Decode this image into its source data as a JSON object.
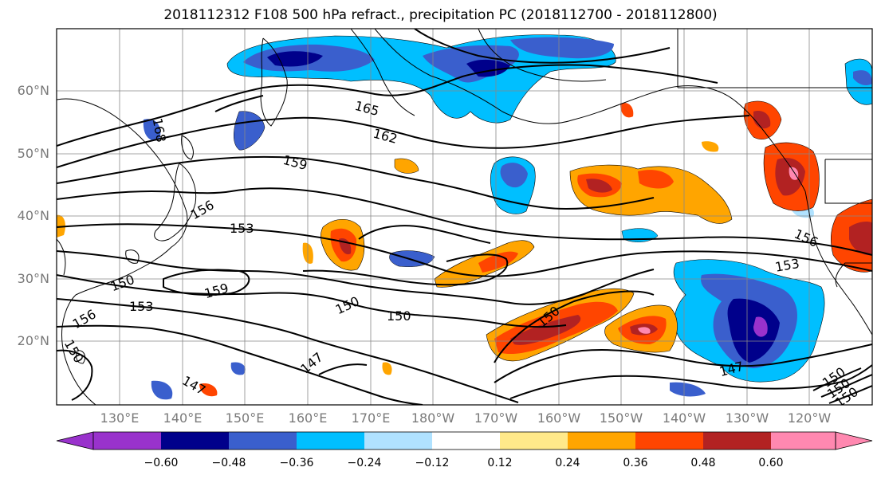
{
  "title": "2018112312 F108 500 hPa refract., precipitation PC (2018112700 - 2018112800)",
  "lat_labels": [
    "60°N",
    "50°N",
    "40°N",
    "30°N",
    "20°N"
  ],
  "lon_labels": [
    "130°E",
    "140°E",
    "150°E",
    "160°E",
    "170°E",
    "180°W",
    "170°W",
    "160°W",
    "150°W",
    "140°W",
    "130°W",
    "120°W"
  ],
  "colorbar": {
    "ticks": [
      "−0.60",
      "−0.48",
      "−0.36",
      "−0.24",
      "−0.12",
      "0.12",
      "0.24",
      "0.36",
      "0.48",
      "0.60"
    ],
    "colors": [
      "#9932cc",
      "#00008b",
      "#3a5fcd",
      "#00bfff",
      "#b0e2ff",
      "#ffffff",
      "#ffe98a",
      "#ffa500",
      "#ff4500",
      "#b22222",
      "#ff88b0"
    ]
  },
  "contour_labels": [
    "165",
    "162",
    "159",
    "156",
    "153",
    "150",
    "159",
    "153",
    "156",
    "150",
    "150",
    "150",
    "147",
    "147",
    "150",
    "147",
    "153",
    "156",
    "150",
    "150",
    "150",
    "168"
  ]
}
